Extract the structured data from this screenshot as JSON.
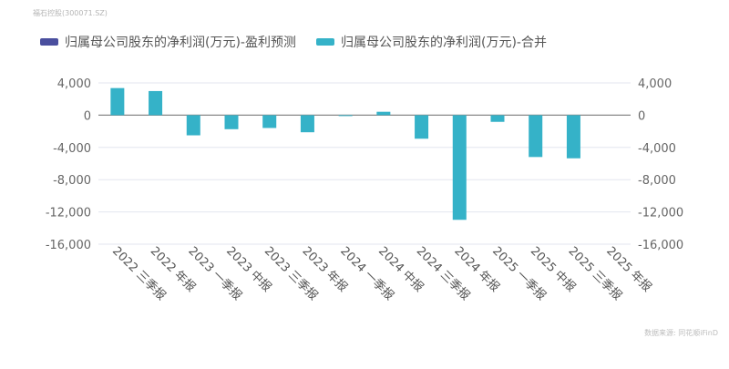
{
  "header": {
    "stock_label": "福石控股(300071.SZ)"
  },
  "legend": [
    {
      "label": "归属母公司股东的净利润(万元)-盈利预测",
      "color": "#4a4f9e"
    },
    {
      "label": "归属母公司股东的净利润(万元)-合并",
      "color": "#35b2c8"
    }
  ],
  "footer": {
    "source": "数据来源: 同花顺iFinD"
  },
  "chart_data": {
    "type": "bar",
    "title": "",
    "xlabel": "",
    "ylabel": "",
    "ylim": [
      -16000,
      4000
    ],
    "yticks": [
      4000,
      0,
      -4000,
      -8000,
      -12000,
      -16000
    ],
    "ytick_labels": [
      "4,000",
      "0",
      "-4,000",
      "-8,000",
      "-12,000",
      "-16,000"
    ],
    "y2_ticks_mirror": true,
    "grid": true,
    "legend_position": "top",
    "categories": [
      "2022 三季报",
      "2022 年报",
      "2023 一季报",
      "2023 中报",
      "2023 三季报",
      "2023 年报",
      "2024 一季报",
      "2024 中报",
      "2024 三季报",
      "2024 年报",
      "2025 一季报",
      "2025 中报",
      "2025 三季报",
      "2025 年报"
    ],
    "series": [
      {
        "name": "归属母公司股东的净利润(万元)-盈利预测",
        "color": "#4a4f9e",
        "values": [
          null,
          null,
          null,
          null,
          null,
          null,
          null,
          null,
          null,
          null,
          null,
          null,
          null,
          null
        ]
      },
      {
        "name": "归属母公司股东的净利润(万元)-合并",
        "color": "#35b2c8",
        "values": [
          3360,
          2990,
          -2500,
          -1740,
          -1590,
          -2120,
          -100,
          420,
          -2920,
          -12980,
          -830,
          -5190,
          -5350,
          null
        ]
      }
    ]
  }
}
